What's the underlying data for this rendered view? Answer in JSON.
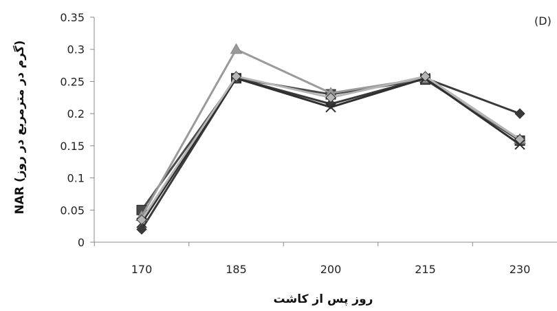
{
  "chart_data": {
    "type": "line",
    "panel_label": "(D)",
    "xlabel": "روز پس از کاشت",
    "ylabel": "NAR (گرم در مترمربع در روز)",
    "categories": [
      "170",
      "185",
      "200",
      "215",
      "230"
    ],
    "ylim": [
      0,
      0.35
    ],
    "yticks": [
      "0",
      "0.05",
      "0.1",
      "0.15",
      "0.2",
      "0.25",
      "0.3",
      "0.35"
    ],
    "grid": false,
    "series": [
      {
        "marker": "diamond",
        "color": "#3a3a3a",
        "values": [
          0.02,
          0.255,
          0.215,
          0.255,
          0.2
        ]
      },
      {
        "marker": "square",
        "color": "#4a4a4a",
        "values": [
          0.05,
          0.255,
          0.23,
          0.253,
          0.158
        ]
      },
      {
        "marker": "triangle",
        "color": "#9a9a9a",
        "values": [
          0.04,
          0.3,
          0.232,
          0.255,
          0.16
        ]
      },
      {
        "marker": "x",
        "color": "#2f2f2f",
        "values": [
          0.03,
          0.255,
          0.21,
          0.255,
          0.152
        ]
      },
      {
        "marker": "diamond-light",
        "color": "#b5b5b5",
        "values": [
          0.035,
          0.258,
          0.225,
          0.258,
          0.16
        ]
      }
    ]
  }
}
